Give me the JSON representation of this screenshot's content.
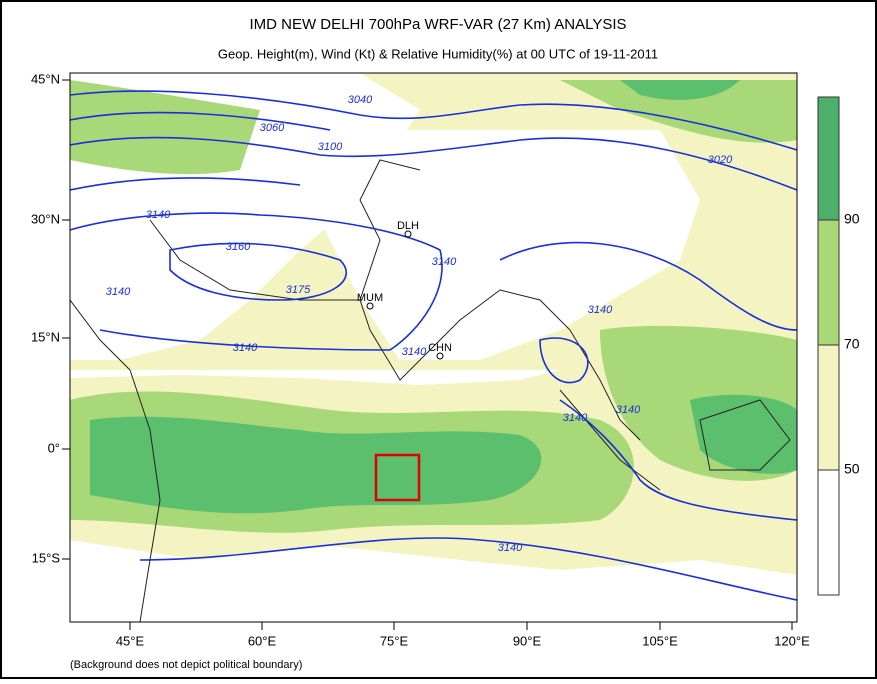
{
  "header": {
    "title": "IMD NEW DELHI 700hPa WRF-VAR (27 Km) ANALYSIS",
    "subtitle": "Geop. Height(m), Wind (Kt) & Relative Humidity(%)  at 00 UTC of 19-11-2011"
  },
  "axes": {
    "lat_labels": [
      "45°N",
      "30°N",
      "15°N",
      "0°",
      "15°S"
    ],
    "lon_labels": [
      "45°E",
      "60°E",
      "75°E",
      "90°E",
      "105°E",
      "120°E"
    ]
  },
  "colorbar": {
    "labels": [
      "90",
      "70",
      "50"
    ]
  },
  "contour_labels": [
    "3040",
    "3060",
    "3100",
    "3020",
    "3140",
    "3160",
    "3175",
    "3140",
    "3140",
    "3140",
    "3140",
    "3140",
    "3140",
    "3140",
    "3140"
  ],
  "cities": [
    "DLH",
    "MUM",
    "CHN"
  ],
  "footnote": "(Background does not depict political boundary)"
}
